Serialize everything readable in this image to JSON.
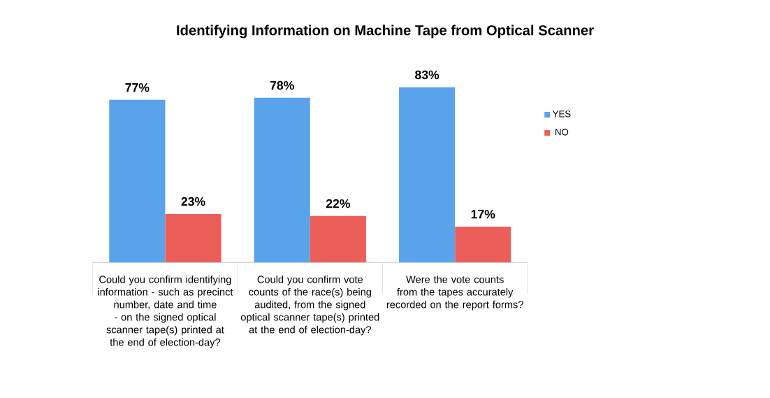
{
  "chart_data": {
    "type": "bar",
    "title": "Identifying Information on Machine Tape from Optical Scanner",
    "categories": [
      "Could you confirm identifying information - such as precinct number, date and time - on the signed optical scanner tape(s) printed at the end of election-day?",
      "Could you confirm vote counts of the race(s) being audited, from the signed optical scanner tape(s) printed at the end of election-day?",
      "Were the vote counts from the tapes accurately recorded on the report forms?"
    ],
    "series": [
      {
        "name": "YES",
        "color": "#5aa3ea",
        "values": [
          77,
          78,
          83
        ],
        "value_labels": [
          "77%",
          "78%",
          "83%"
        ]
      },
      {
        "name": "NO",
        "color": "#ec5e5a",
        "values": [
          23,
          22,
          17
        ],
        "value_labels": [
          "23%",
          "22%",
          "17%"
        ]
      }
    ],
    "legend": "right"
  }
}
